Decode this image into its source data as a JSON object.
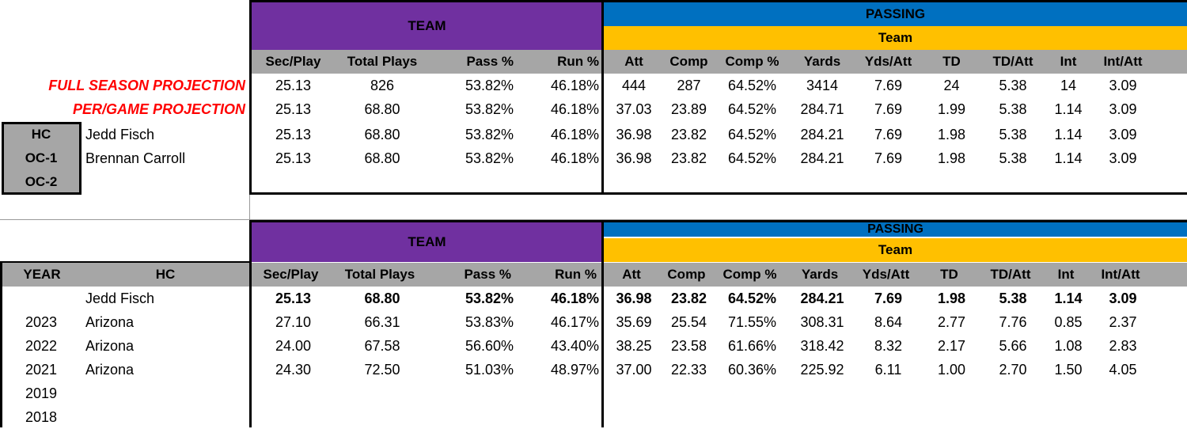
{
  "sections": {
    "team": "TEAM",
    "passing": "PASSING",
    "passing_sub": "Team"
  },
  "columns": [
    "Sec/Play",
    "Total Plays",
    "Pass %",
    "Run %",
    "Att",
    "Comp",
    "Comp %",
    "Yards",
    "Yds/Att",
    "TD",
    "TD/Att",
    "Int",
    "Int/Att"
  ],
  "projections": [
    {
      "label": "FULL SEASON PROJECTION",
      "values": [
        "25.13",
        "826",
        "53.82%",
        "46.18%",
        "444",
        "287",
        "64.52%",
        "3414",
        "7.69",
        "24",
        "5.38",
        "14",
        "3.09"
      ]
    },
    {
      "label": "PER/GAME PROJECTION",
      "values": [
        "25.13",
        "68.80",
        "53.82%",
        "46.18%",
        "37.03",
        "23.89",
        "64.52%",
        "284.71",
        "7.69",
        "1.99",
        "5.38",
        "1.14",
        "3.09"
      ]
    }
  ],
  "coaches": [
    {
      "role": "HC",
      "name": "Jedd Fisch",
      "values": [
        "25.13",
        "68.80",
        "53.82%",
        "46.18%",
        "36.98",
        "23.82",
        "64.52%",
        "284.21",
        "7.69",
        "1.98",
        "5.38",
        "1.14",
        "3.09"
      ]
    },
    {
      "role": "OC-1",
      "name": "Brennan Carroll",
      "values": [
        "25.13",
        "68.80",
        "53.82%",
        "46.18%",
        "36.98",
        "23.82",
        "64.52%",
        "284.21",
        "7.69",
        "1.98",
        "5.38",
        "1.14",
        "3.09"
      ]
    },
    {
      "role": "OC-2",
      "name": "",
      "values": []
    }
  ],
  "history_headers": {
    "year": "YEAR",
    "hc": "HC"
  },
  "history": [
    {
      "year": "",
      "hc": "Jedd Fisch",
      "bold": true,
      "values": [
        "25.13",
        "68.80",
        "53.82%",
        "46.18%",
        "36.98",
        "23.82",
        "64.52%",
        "284.21",
        "7.69",
        "1.98",
        "5.38",
        "1.14",
        "3.09"
      ]
    },
    {
      "year": "2023",
      "hc": "Arizona",
      "bold": false,
      "values": [
        "27.10",
        "66.31",
        "53.83%",
        "46.17%",
        "35.69",
        "25.54",
        "71.55%",
        "308.31",
        "8.64",
        "2.77",
        "7.76",
        "0.85",
        "2.37"
      ]
    },
    {
      "year": "2022",
      "hc": "Arizona",
      "bold": false,
      "values": [
        "24.00",
        "67.58",
        "56.60%",
        "43.40%",
        "38.25",
        "23.58",
        "61.66%",
        "318.42",
        "8.32",
        "2.17",
        "5.66",
        "1.08",
        "2.83"
      ]
    },
    {
      "year": "2021",
      "hc": "Arizona",
      "bold": false,
      "values": [
        "24.30",
        "72.50",
        "51.03%",
        "48.97%",
        "37.00",
        "22.33",
        "60.36%",
        "225.92",
        "6.11",
        "1.00",
        "2.70",
        "1.50",
        "4.05"
      ]
    },
    {
      "year": "2019",
      "hc": "",
      "bold": false,
      "values": []
    },
    {
      "year": "2018",
      "hc": "",
      "bold": false,
      "values": []
    }
  ]
}
